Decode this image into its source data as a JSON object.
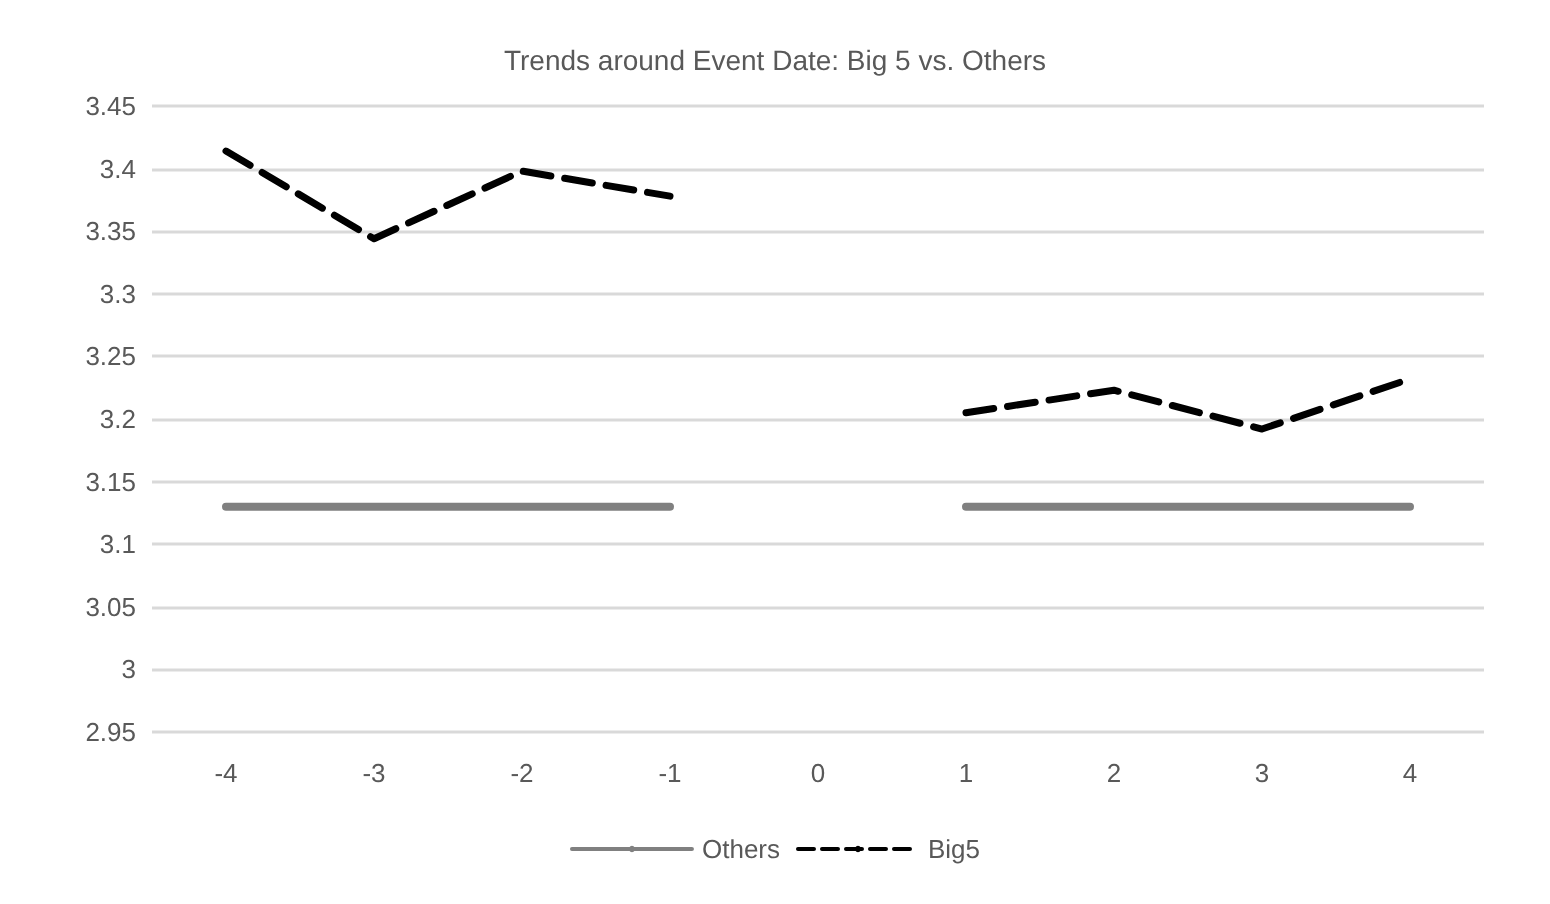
{
  "chart_data": {
    "type": "line",
    "title": "Trends around Event Date: Big 5 vs. Others",
    "categories": [
      "-4",
      "-3",
      "-2",
      "-1",
      "0",
      "1",
      "2",
      "3",
      "4"
    ],
    "series": [
      {
        "name": "Others",
        "color": "#808080",
        "line_style": "solid",
        "values": [
          3.13,
          3.13,
          3.13,
          3.13,
          null,
          3.13,
          3.13,
          3.13,
          3.13
        ]
      },
      {
        "name": "Big5",
        "color": "#000000",
        "line_style": "dashed",
        "values": [
          3.414,
          3.344,
          3.398,
          3.378,
          null,
          3.205,
          3.223,
          3.192,
          3.232
        ]
      }
    ],
    "ylim": [
      2.95,
      3.45
    ],
    "yticks": [
      2.95,
      3,
      3.05,
      3.1,
      3.15,
      3.2,
      3.25,
      3.3,
      3.35,
      3.4,
      3.45
    ],
    "grid": "y",
    "legend": "bottom",
    "marker": "none"
  }
}
